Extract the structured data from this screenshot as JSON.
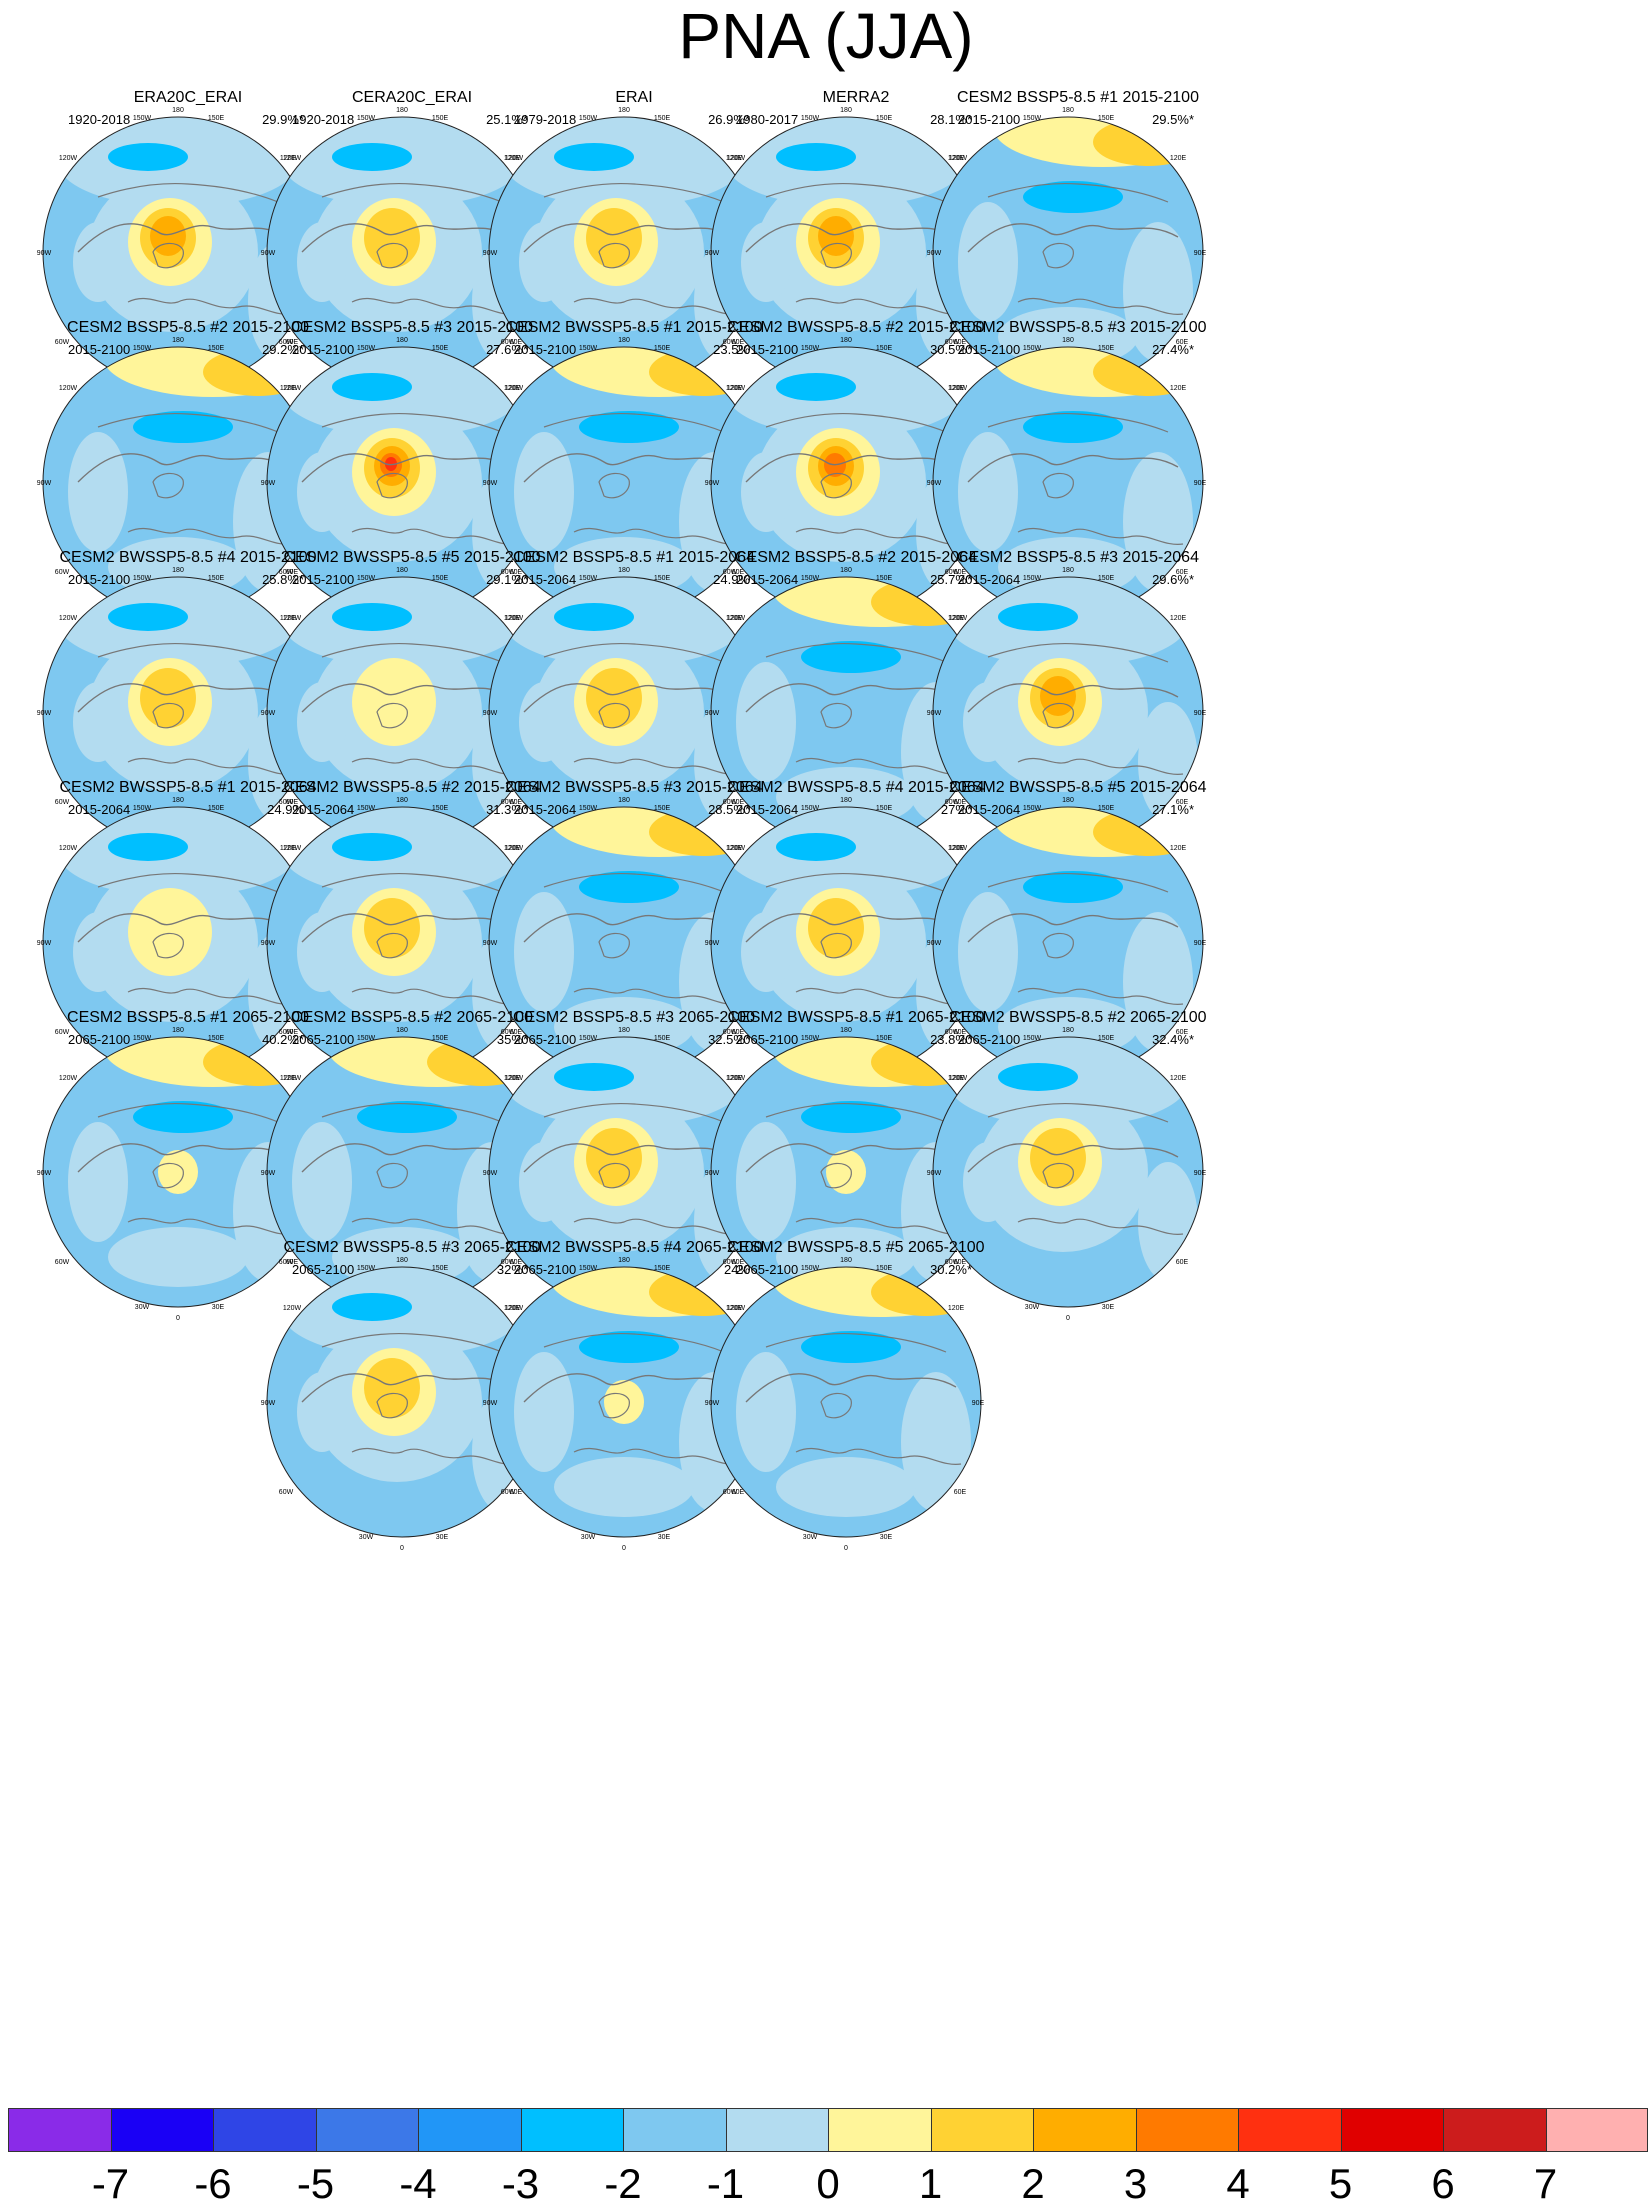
{
  "title": "PNA (JJA)",
  "lon_labels": [
    "180",
    "150W",
    "150E",
    "120W",
    "120E",
    "90W",
    "90E",
    "60W",
    "60E",
    "30W",
    "30E",
    "0"
  ],
  "panels": [
    {
      "title": "ERA20C_ERAI",
      "period": "1920-2018",
      "percent": "29.9%*",
      "center_level": 3,
      "pattern": "polar"
    },
    {
      "title": "CERA20C_ERAI",
      "period": "1920-2018",
      "percent": "25.1%*",
      "center_level": 2,
      "pattern": "polar"
    },
    {
      "title": "ERAI",
      "period": "1979-2018",
      "percent": "26.9%*",
      "center_level": 2,
      "pattern": "polar"
    },
    {
      "title": "MERRA2",
      "period": "1980-2017",
      "percent": "28.1%*",
      "center_level": 3,
      "pattern": "polar"
    },
    {
      "title": "CESM2 BSSP5-8.5 #1 2015-2100",
      "period": "2015-2100",
      "percent": "29.5%*",
      "center_level": 0,
      "pattern": "pacific"
    },
    {
      "title": "CESM2 BSSP5-8.5 #2 2015-2100",
      "period": "2015-2100",
      "percent": "29.2%*",
      "center_level": 0,
      "pattern": "pacific"
    },
    {
      "title": "CESM2 BSSP5-8.5 #3 2015-2100",
      "period": "2015-2100",
      "percent": "27.6%*",
      "center_level": 5,
      "pattern": "polar"
    },
    {
      "title": "CESM2 BWSSP5-8.5 #1 2015-2100",
      "period": "2015-2100",
      "percent": "23.5%",
      "center_level": 0,
      "pattern": "pacific"
    },
    {
      "title": "CESM2 BWSSP5-8.5 #2 2015-2100",
      "period": "2015-2100",
      "percent": "30.5%*",
      "center_level": 4,
      "pattern": "polar"
    },
    {
      "title": "CESM2 BWSSP5-8.5 #3 2015-2100",
      "period": "2015-2100",
      "percent": "27.4%*",
      "center_level": 0,
      "pattern": "pacific"
    },
    {
      "title": "CESM2 BWSSP5-8.5 #4 2015-2100",
      "period": "2015-2100",
      "percent": "25.8%*",
      "center_level": 2,
      "pattern": "polar"
    },
    {
      "title": "CESM2 BWSSP5-8.5 #5 2015-2100",
      "period": "2015-2100",
      "percent": "29.1%*",
      "center_level": 1,
      "pattern": "polar"
    },
    {
      "title": "CESM2 BSSP5-8.5 #1 2015-2064",
      "period": "2015-2064",
      "percent": "24.9%",
      "center_level": 2,
      "pattern": "polar"
    },
    {
      "title": "CESM2 BSSP5-8.5 #2 2015-2064",
      "period": "2015-2064",
      "percent": "25.7%*",
      "center_level": 0,
      "pattern": "pacific"
    },
    {
      "title": "CESM2 BSSP5-8.5 #3 2015-2064",
      "period": "2015-2064",
      "percent": "29.6%*",
      "center_level": 3,
      "pattern": "polar"
    },
    {
      "title": "CESM2 BWSSP5-8.5 #1 2015-2064",
      "period": "2015-2064",
      "percent": "24.9%",
      "center_level": 1,
      "pattern": "polar"
    },
    {
      "title": "CESM2 BWSSP5-8.5 #2 2015-2064",
      "period": "2015-2064",
      "percent": "31.3%*",
      "center_level": 2,
      "pattern": "polar"
    },
    {
      "title": "CESM2 BWSSP5-8.5 #3 2015-2064",
      "period": "2015-2064",
      "percent": "28.5%*",
      "center_level": 0,
      "pattern": "pacific"
    },
    {
      "title": "CESM2 BWSSP5-8.5 #4 2015-2064",
      "period": "2015-2064",
      "percent": "27%*",
      "center_level": 2,
      "pattern": "polar"
    },
    {
      "title": "CESM2 BWSSP5-8.5 #5 2015-2064",
      "period": "2015-2064",
      "percent": "27.1%*",
      "center_level": 0,
      "pattern": "pacific"
    },
    {
      "title": "CESM2 BSSP5-8.5 #1 2065-2100",
      "period": "2065-2100",
      "percent": "40.2%*",
      "center_level": 1,
      "pattern": "pacific"
    },
    {
      "title": "CESM2 BSSP5-8.5 #2 2065-2100",
      "period": "2065-2100",
      "percent": "35%*",
      "center_level": 0,
      "pattern": "pacific"
    },
    {
      "title": "CESM2 BSSP5-8.5 #3 2065-2100",
      "period": "2065-2100",
      "percent": "32.5%*",
      "center_level": 2,
      "pattern": "polar"
    },
    {
      "title": "CESM2 BWSSP5-8.5 #1 2065-2100",
      "period": "2065-2100",
      "percent": "23.8%*",
      "center_level": 1,
      "pattern": "pacific"
    },
    {
      "title": "CESM2 BWSSP5-8.5 #2 2065-2100",
      "period": "2065-2100",
      "percent": "32.4%*",
      "center_level": 2,
      "pattern": "polar"
    },
    {
      "title": "CESM2 BWSSP5-8.5 #3 2065-2100",
      "period": "2065-2100",
      "percent": "32%*",
      "center_level": 2,
      "pattern": "polar"
    },
    {
      "title": "CESM2 BWSSP5-8.5 #4 2065-2100",
      "period": "2065-2100",
      "percent": "24%",
      "center_level": 1,
      "pattern": "pacific"
    },
    {
      "title": "CESM2 BWSSP5-8.5 #5 2065-2100",
      "period": "2065-2100",
      "percent": "30.2%*",
      "center_level": 0,
      "pattern": "pacific"
    }
  ],
  "colorbar": {
    "colors": [
      "#8a2be8",
      "#1a00f5",
      "#2f45e6",
      "#3c78e8",
      "#2196f7",
      "#00bfff",
      "#7ec8f0",
      "#b3dcf0",
      "#fff59a",
      "#ffd233",
      "#ffad00",
      "#ff7a00",
      "#ff3010",
      "#e00000",
      "#cc1c1c",
      "#ffb0b0"
    ],
    "labels": [
      "-7",
      "-6",
      "-5",
      "-4",
      "-3",
      "-2",
      "-1",
      "0",
      "1",
      "2",
      "3",
      "4",
      "5",
      "6",
      "7"
    ]
  }
}
